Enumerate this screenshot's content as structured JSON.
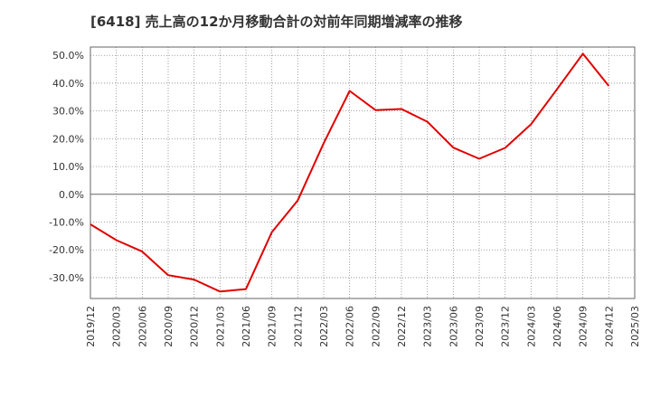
{
  "chart_data": {
    "type": "line",
    "title": "[6418]  売上高の12か月移動合計の対前年同期増減率の推移",
    "xlabel": "",
    "ylabel": "",
    "ylim": [
      -37.5,
      53
    ],
    "y_ticks": [
      50,
      40,
      30,
      20,
      10,
      0,
      -10,
      -20,
      -30
    ],
    "y_tick_labels": [
      "50.0%",
      "40.0%",
      "30.0%",
      "20.0%",
      "10.0%",
      "0.0%",
      "-10.0%",
      "-20.0%",
      "-30.0%"
    ],
    "x_tick_labels": [
      "2019/12",
      "2020/03",
      "2020/06",
      "2020/09",
      "2020/12",
      "2021/03",
      "2021/06",
      "2021/09",
      "2021/12",
      "2022/03",
      "2022/06",
      "2022/09",
      "2022/12",
      "2023/03",
      "2023/06",
      "2023/09",
      "2023/12",
      "2024/03",
      "2024/06",
      "2024/09",
      "2024/12",
      "2025/03"
    ],
    "grid": true,
    "series": [
      {
        "name": "売上高の12か月移動合計の対前年同期増減率",
        "color": "#e00000",
        "x": [
          "2019/12",
          "2020/03",
          "2020/06",
          "2020/09",
          "2020/12",
          "2021/03",
          "2021/06",
          "2021/09",
          "2021/12",
          "2022/03",
          "2022/06",
          "2022/09",
          "2022/12",
          "2023/03",
          "2023/06",
          "2023/09",
          "2023/12",
          "2024/03",
          "2024/06",
          "2024/09",
          "2024/12"
        ],
        "values": [
          -10.8,
          -16.5,
          -20.6,
          -29.1,
          -30.7,
          -35.0,
          -34.1,
          -13.6,
          -2.2,
          18.4,
          37.2,
          30.3,
          30.7,
          26.1,
          16.8,
          12.8,
          16.7,
          25.2,
          37.8,
          50.6,
          39.0
        ]
      }
    ]
  }
}
